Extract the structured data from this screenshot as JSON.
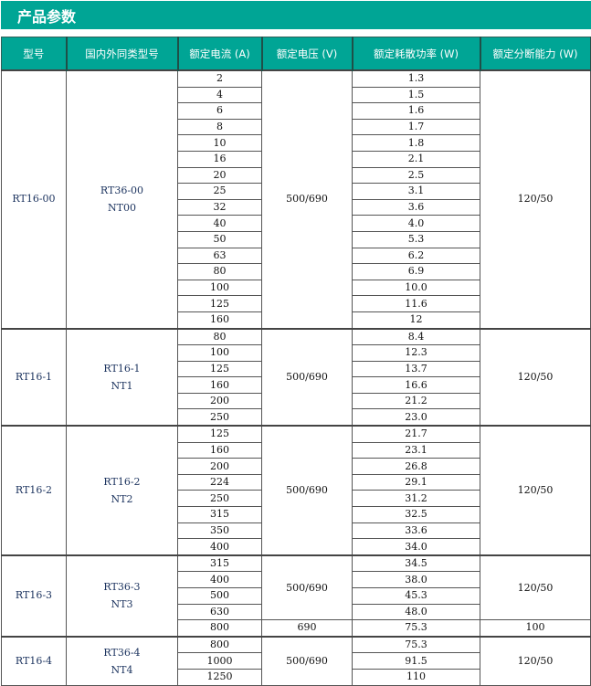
{
  "title": "产品参数",
  "headers": [
    "型号",
    "国内外同类型号",
    "额定电流 (A)",
    "额定电压 (V)",
    "额定耗散功率 (W)",
    "额定分断能力 (W)"
  ],
  "groups": [
    {
      "model": "RT16-00",
      "equivalents": [
        "RT36-00",
        "NT00"
      ],
      "currents": [
        "2",
        "4",
        "6",
        "8",
        "10",
        "16",
        "20",
        "25",
        "32",
        "40",
        "50",
        "63",
        "80",
        "100",
        "125",
        "160"
      ],
      "powers": [
        "1.3",
        "1.5",
        "1.6",
        "1.7",
        "1.8",
        "2.1",
        "2.5",
        "3.1",
        "3.6",
        "4.0",
        "5.3",
        "6.2",
        "6.9",
        "10.0",
        "11.6",
        "12"
      ],
      "voltages": [
        "500/690",
        "500/690",
        "500/690",
        "500/690",
        "500/690",
        "500/690",
        "500/690",
        "500/690",
        "500/690",
        "500/690",
        "500/690",
        "500/690",
        "500/690",
        "500/690",
        "500/690",
        "500/690"
      ],
      "capacities": [
        "120/50",
        "120/50",
        "120/50",
        "120/50",
        "120/50",
        "120/50",
        "120/50",
        "120/50",
        "120/50",
        "120/50",
        "120/50",
        "120/50",
        "120/50",
        "120/50",
        "120/50",
        "120/50"
      ]
    },
    {
      "model": "RT16-1",
      "equivalents": [
        "RT16-1",
        "NT1"
      ],
      "currents": [
        "80",
        "100",
        "125",
        "160",
        "200",
        "250"
      ],
      "powers": [
        "8.4",
        "12.3",
        "13.7",
        "16.6",
        "21.2",
        "23.0"
      ],
      "voltages": [
        "500/690",
        "500/690",
        "500/690",
        "500/690",
        "500/690",
        "500/690"
      ],
      "capacities": [
        "120/50",
        "120/50",
        "120/50",
        "120/50",
        "120/50",
        "120/50"
      ]
    },
    {
      "model": "RT16-2",
      "equivalents": [
        "RT16-2",
        "NT2"
      ],
      "currents": [
        "125",
        "160",
        "200",
        "224",
        "250",
        "315",
        "350",
        "400"
      ],
      "powers": [
        "21.7",
        "23.1",
        "26.8",
        "29.1",
        "31.2",
        "32.5",
        "33.6",
        "34.0"
      ],
      "voltages": [
        "500/690",
        "500/690",
        "500/690",
        "500/690",
        "500/690",
        "500/690",
        "500/690",
        "500/690"
      ],
      "capacities": [
        "120/50",
        "120/50",
        "120/50",
        "120/50",
        "120/50",
        "120/50",
        "120/50",
        "120/50"
      ]
    },
    {
      "model": "RT16-3",
      "equivalents": [
        "RT36-3",
        "NT3"
      ],
      "currents": [
        "315",
        "400",
        "500",
        "630",
        "800"
      ],
      "powers": [
        "34.5",
        "38.0",
        "45.3",
        "48.0",
        "75.3"
      ],
      "voltages": [
        "500/690",
        "500/690",
        "500/690",
        "500/690",
        "690"
      ],
      "capacities": [
        "120/50",
        "120/50",
        "120/50",
        "120/50",
        "100"
      ]
    },
    {
      "model": "RT16-4",
      "equivalents": [
        "RT36-4",
        "NT4"
      ],
      "currents": [
        "800",
        "1000",
        "1250"
      ],
      "powers": [
        "75.3",
        "91.5",
        "110"
      ],
      "voltages": [
        "500/690",
        "500/690",
        "500/690"
      ],
      "capacities": [
        "120/50",
        "120/50",
        "120/50"
      ]
    }
  ]
}
